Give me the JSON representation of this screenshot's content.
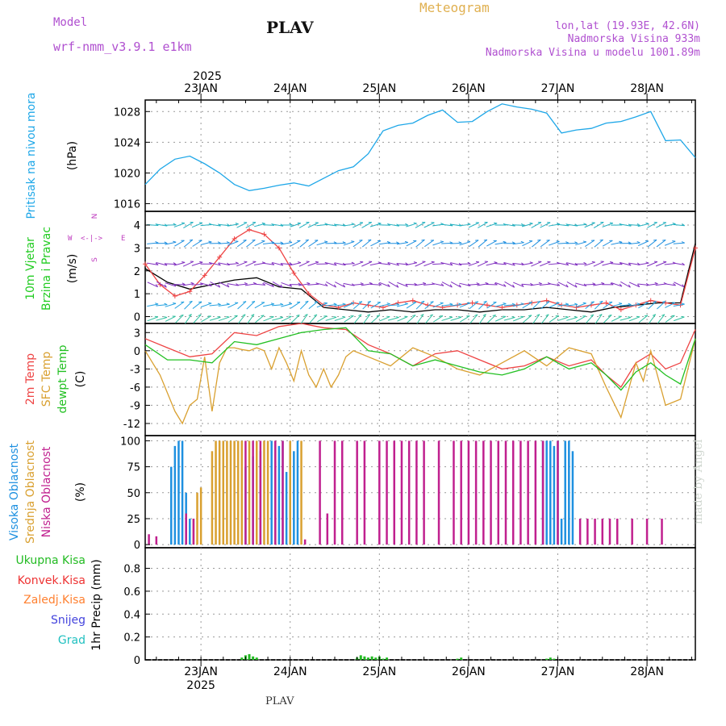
{
  "header": {
    "model_label": "Model",
    "model_name": "wrf-nmm_v3.9.1  e1km",
    "location": "PLAV",
    "product": "Meteogram",
    "lonlat": "lon,lat (19.93E, 42.6N)",
    "elevation": "Nadmorska Visina 933m",
    "model_elevation": "Nadmorska Visina u modelu 1001.89m",
    "footer_location": "PLAV",
    "watermark": "made by Angel"
  },
  "colors": {
    "pressure": "#1ea7e8",
    "wind_label": "#22cc22",
    "wind_dir": "#c040c0",
    "temp2m": "#ee4444",
    "sfc_temp": "#d9a030",
    "dewpt": "#22c022",
    "high_cloud": "#1e90e0",
    "mid_cloud": "#d9a030",
    "low_cloud": "#c0208f",
    "total_precip": "#22bb22",
    "conv_precip": "#ee3333",
    "frozen_precip": "#ff8030",
    "snow": "#4444dd",
    "hail": "#20c0c0",
    "header_purple": "#b050d0",
    "header_gold": "#e0b050"
  },
  "time_axis": {
    "year": "2025",
    "days": [
      "23JAN",
      "24JAN",
      "25JAN",
      "26JAN",
      "27JAN",
      "28JAN"
    ]
  },
  "chart_data": [
    {
      "type": "line",
      "panel": "pressure",
      "ylabel_lines": [
        "Pritisak na nivou mora",
        "(hPa)"
      ],
      "yticks": [
        1016,
        1020,
        1024,
        1028
      ],
      "ylim": [
        1015,
        1029.5
      ],
      "grid": true,
      "series": [
        {
          "name": "Pritisak na nivou mora",
          "x": [
            0,
            4,
            8,
            12,
            16,
            20,
            24,
            28,
            32,
            36,
            40,
            44,
            48,
            52,
            56,
            60,
            64,
            68,
            72,
            76,
            80,
            84,
            88,
            92,
            96,
            100,
            104,
            108,
            112,
            116,
            120,
            124,
            128,
            132,
            136,
            140,
            144,
            148
          ],
          "values": [
            1018.5,
            1020.5,
            1021.8,
            1022.2,
            1021.2,
            1020.0,
            1018.5,
            1017.7,
            1018.0,
            1018.4,
            1018.7,
            1018.3,
            1019.3,
            1020.3,
            1020.8,
            1022.5,
            1025.5,
            1026.2,
            1026.5,
            1027.5,
            1028.2,
            1026.6,
            1026.7,
            1028.0,
            1029.0,
            1028.6,
            1028.3,
            1027.8,
            1025.2,
            1025.6,
            1025.8,
            1026.5,
            1026.7,
            1027.3,
            1028.0,
            1024.2,
            1024.3,
            1022.0
          ]
        }
      ]
    },
    {
      "type": "line",
      "panel": "wind",
      "ylabel_lines": [
        "10m Vjetar",
        "Brzina i Pravac",
        "(m/s)"
      ],
      "direction_legend": {
        "n": "N",
        "e": "E",
        "s": "S",
        "w": "W"
      },
      "yticks": [
        0,
        1,
        2,
        3,
        4
      ],
      "ylim": [
        -0.3,
        4.6
      ],
      "grid": true,
      "series": [
        {
          "name": "speed_black",
          "x": [
            0,
            6,
            12,
            18,
            24,
            30,
            36,
            42,
            48,
            54,
            60,
            66,
            72,
            78,
            84,
            90,
            96,
            102,
            108,
            114,
            120,
            126,
            132,
            138,
            144,
            148
          ],
          "values": [
            2.1,
            1.5,
            1.2,
            1.4,
            1.6,
            1.7,
            1.3,
            1.2,
            0.4,
            0.3,
            0.2,
            0.3,
            0.2,
            0.3,
            0.3,
            0.2,
            0.3,
            0.3,
            0.4,
            0.3,
            0.2,
            0.4,
            0.5,
            0.6,
            0.6,
            3.2
          ]
        },
        {
          "name": "speed_red",
          "x": [
            0,
            4,
            8,
            12,
            16,
            20,
            24,
            28,
            32,
            36,
            40,
            44,
            48,
            52,
            56,
            60,
            64,
            68,
            72,
            76,
            80,
            84,
            88,
            92,
            96,
            100,
            104,
            108,
            112,
            116,
            120,
            124,
            128,
            132,
            136,
            140,
            144,
            148
          ],
          "values": [
            2.3,
            1.4,
            0.9,
            1.1,
            1.8,
            2.6,
            3.4,
            3.8,
            3.6,
            3.0,
            1.9,
            1.0,
            0.5,
            0.4,
            0.6,
            0.5,
            0.4,
            0.6,
            0.7,
            0.5,
            0.4,
            0.5,
            0.6,
            0.5,
            0.4,
            0.5,
            0.6,
            0.7,
            0.5,
            0.4,
            0.5,
            0.6,
            0.3,
            0.5,
            0.7,
            0.6,
            0.5,
            3.0
          ]
        }
      ]
    },
    {
      "type": "line",
      "panel": "temperature",
      "ylabel_lines": [
        "2m Temp",
        "SFC Temp",
        "dewpt Temp",
        "(C)"
      ],
      "yticks": [
        3,
        0,
        -3,
        -6,
        -9,
        -12
      ],
      "ylim": [
        -14,
        4.5
      ],
      "grid": true,
      "series": [
        {
          "name": "2m Temp",
          "x": [
            0,
            6,
            12,
            18,
            24,
            30,
            36,
            42,
            48,
            54,
            60,
            66,
            72,
            78,
            84,
            90,
            96,
            102,
            108,
            114,
            120,
            124,
            128,
            132,
            136,
            140,
            144,
            148
          ],
          "values": [
            2.0,
            0.5,
            -1.0,
            -0.5,
            3.0,
            2.5,
            4.0,
            4.5,
            3.8,
            3.5,
            1.0,
            -0.5,
            -2.5,
            -0.5,
            0.0,
            -1.5,
            -3.0,
            -2.5,
            -1.0,
            -2.5,
            -1.5,
            -4.0,
            -6.0,
            -2.0,
            -0.5,
            -3.0,
            -2.0,
            3.5
          ]
        },
        {
          "name": "SFC Temp",
          "x": [
            0,
            4,
            8,
            10,
            12,
            14,
            16,
            18,
            20,
            22,
            24,
            26,
            28,
            30,
            32,
            34,
            36,
            38,
            40,
            42,
            44,
            46,
            48,
            50,
            52,
            54,
            56,
            60,
            66,
            72,
            78,
            84,
            90,
            96,
            102,
            108,
            114,
            120,
            124,
            128,
            132,
            134,
            136,
            140,
            144,
            148
          ],
          "values": [
            0.0,
            -4.0,
            -10.0,
            -12.0,
            -9.0,
            -8.0,
            -1.0,
            -10.0,
            -2.0,
            0.5,
            0.5,
            0.2,
            0.0,
            0.5,
            0.0,
            -3.0,
            0.5,
            -2.0,
            -5.0,
            0.0,
            -4.0,
            -6.0,
            -3.0,
            -6.0,
            -4.0,
            -1.0,
            0.0,
            -1.0,
            -2.5,
            0.5,
            -1.0,
            -3.0,
            -4.0,
            -2.0,
            0.0,
            -2.5,
            0.5,
            -0.5,
            -6.0,
            -11.0,
            -2.0,
            -5.0,
            0.0,
            -9.0,
            -8.0,
            2.0
          ]
        },
        {
          "name": "dewpt Temp",
          "x": [
            0,
            6,
            12,
            18,
            24,
            30,
            36,
            42,
            48,
            54,
            60,
            66,
            72,
            78,
            84,
            90,
            96,
            102,
            108,
            114,
            120,
            124,
            128,
            132,
            136,
            140,
            144,
            148
          ],
          "values": [
            1.0,
            -1.5,
            -1.5,
            -2.0,
            1.5,
            1.0,
            2.0,
            3.0,
            3.5,
            3.8,
            0.0,
            -0.5,
            -2.5,
            -1.5,
            -2.5,
            -3.5,
            -4.0,
            -3.0,
            -1.0,
            -3.0,
            -2.0,
            -4.0,
            -6.5,
            -3.5,
            -2.0,
            -4.0,
            -5.5,
            2.0
          ]
        }
      ]
    },
    {
      "type": "bar",
      "panel": "cloud",
      "ylabel_lines": [
        "Visoka Oblacnost",
        "Srednja Oblacnost",
        "Niska Oblacnost",
        "(%)"
      ],
      "yticks": [
        0,
        25,
        50,
        75,
        100
      ],
      "ylim": [
        -3,
        105
      ],
      "grid": true,
      "series": [
        {
          "name": "Visoka Oblacnost",
          "x": [
            7,
            8,
            9,
            10,
            11,
            12,
            27,
            29,
            31,
            34,
            35,
            36,
            37,
            38,
            39,
            40,
            41,
            107,
            108,
            109,
            110,
            111,
            112,
            113,
            114,
            115
          ],
          "values": [
            75,
            95,
            100,
            100,
            50,
            25,
            75,
            85,
            90,
            100,
            80,
            95,
            100,
            70,
            100,
            90,
            100,
            100,
            100,
            100,
            95,
            100,
            25,
            100,
            100,
            90
          ]
        },
        {
          "name": "Srednja Oblacnost",
          "x": [
            13,
            14,
            15,
            18,
            19,
            20,
            21,
            22,
            23,
            24,
            25,
            26,
            28,
            30,
            32,
            33,
            35,
            39,
            42
          ],
          "values": [
            25,
            50,
            55,
            90,
            100,
            100,
            100,
            100,
            100,
            100,
            100,
            100,
            100,
            100,
            100,
            100,
            100,
            100,
            100
          ]
        },
        {
          "name": "Niska Oblacnost",
          "x": [
            1,
            3,
            11,
            13,
            27,
            29,
            31,
            35,
            37,
            43,
            47,
            49,
            51,
            53,
            57,
            59,
            63,
            65,
            67,
            69,
            71,
            73,
            75,
            79,
            83,
            85,
            87,
            89,
            91,
            93,
            95,
            97,
            99,
            101,
            103,
            105,
            107,
            111,
            117,
            119,
            121,
            123,
            125,
            127,
            131,
            135,
            139
          ],
          "values": [
            10,
            8,
            30,
            25,
            100,
            100,
            100,
            100,
            100,
            5,
            100,
            30,
            100,
            100,
            100,
            100,
            100,
            100,
            100,
            100,
            100,
            100,
            100,
            100,
            100,
            100,
            100,
            100,
            100,
            100,
            100,
            100,
            100,
            100,
            100,
            100,
            100,
            100,
            25,
            25,
            25,
            25,
            25,
            25,
            25,
            25,
            25
          ]
        }
      ]
    },
    {
      "type": "bar",
      "panel": "precip",
      "ylabel_lines": [
        "1hr Precip (mm)"
      ],
      "legend": [
        "Ukupna Kisa",
        "Konvek.Kisa",
        "Zaledj.Kisa",
        "Snijeg",
        "Grad"
      ],
      "yticks": [
        0,
        0.2,
        0.4,
        0.6,
        0.8
      ],
      "ylim": [
        0,
        0.98
      ],
      "grid": true,
      "series": [
        {
          "name": "Ukupna Kisa",
          "x": [
            26,
            27,
            28,
            29,
            30,
            57,
            58,
            59,
            60,
            61,
            62,
            63,
            64,
            65,
            84,
            85,
            108,
            109,
            110
          ],
          "values": [
            0.02,
            0.04,
            0.05,
            0.03,
            0.02,
            0.02,
            0.04,
            0.03,
            0.02,
            0.03,
            0.02,
            0.03,
            0.01,
            0.02,
            0.01,
            0.02,
            0.01,
            0.02,
            0.01
          ]
        }
      ]
    }
  ]
}
